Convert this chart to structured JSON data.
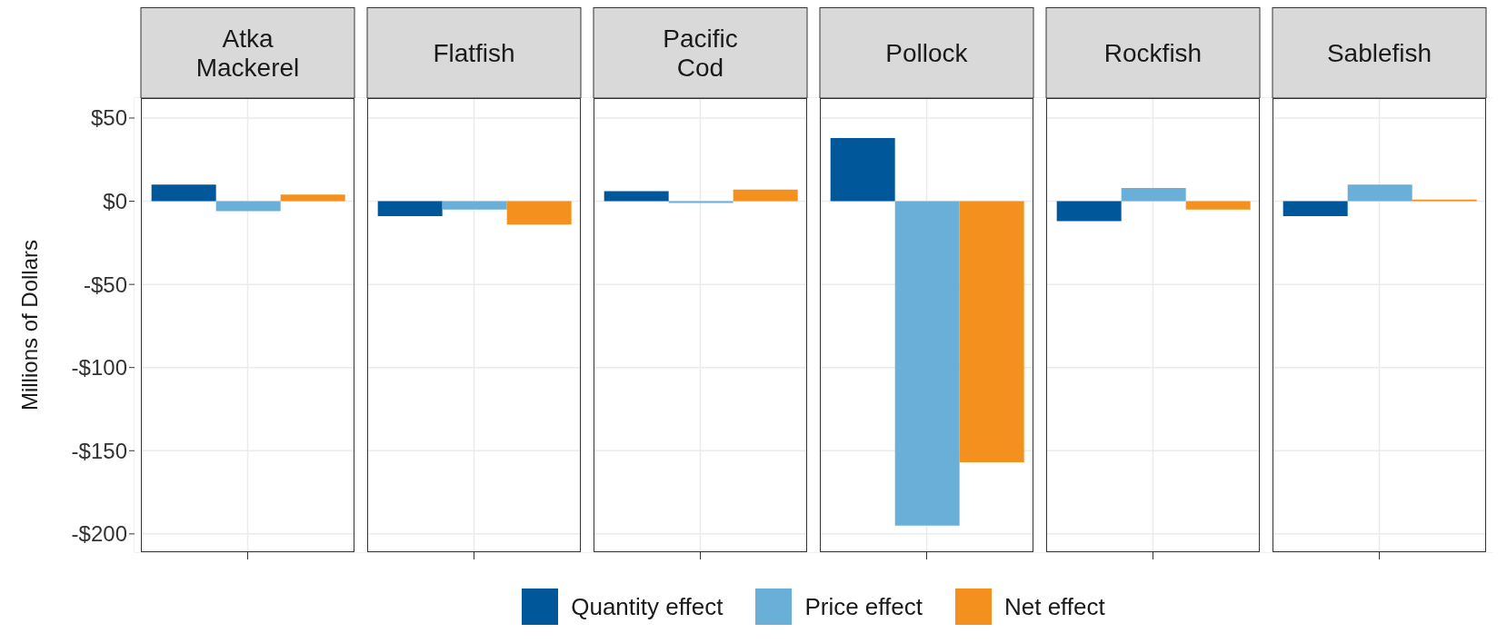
{
  "chart_data": {
    "type": "bar",
    "ylabel": "Millions of Dollars",
    "categories": [
      "Atka Mackerel",
      "Flatfish",
      "Pacific Cod",
      "Pollock",
      "Rockfish",
      "Sablefish"
    ],
    "ylim": [
      -211,
      62
    ],
    "yticks": [
      {
        "value": 50,
        "label": "$50"
      },
      {
        "value": 0,
        "label": "$0"
      },
      {
        "value": -50,
        "label": "-$50"
      },
      {
        "value": -100,
        "label": "-$100"
      },
      {
        "value": -150,
        "label": "-$150"
      },
      {
        "value": -200,
        "label": "-$200"
      }
    ],
    "grid": true,
    "legend": "bottom",
    "series": [
      {
        "name": "Quantity effect",
        "color": "#00589b",
        "values": [
          10,
          -9,
          6,
          38,
          -12,
          -9
        ]
      },
      {
        "name": "Price effect",
        "color": "#6aafd8",
        "values": [
          -6,
          -5,
          -1,
          -195,
          8,
          10
        ]
      },
      {
        "name": "Net effect",
        "color": "#f4901e",
        "values": [
          4,
          -14,
          7,
          -157,
          -5,
          1
        ]
      }
    ]
  }
}
